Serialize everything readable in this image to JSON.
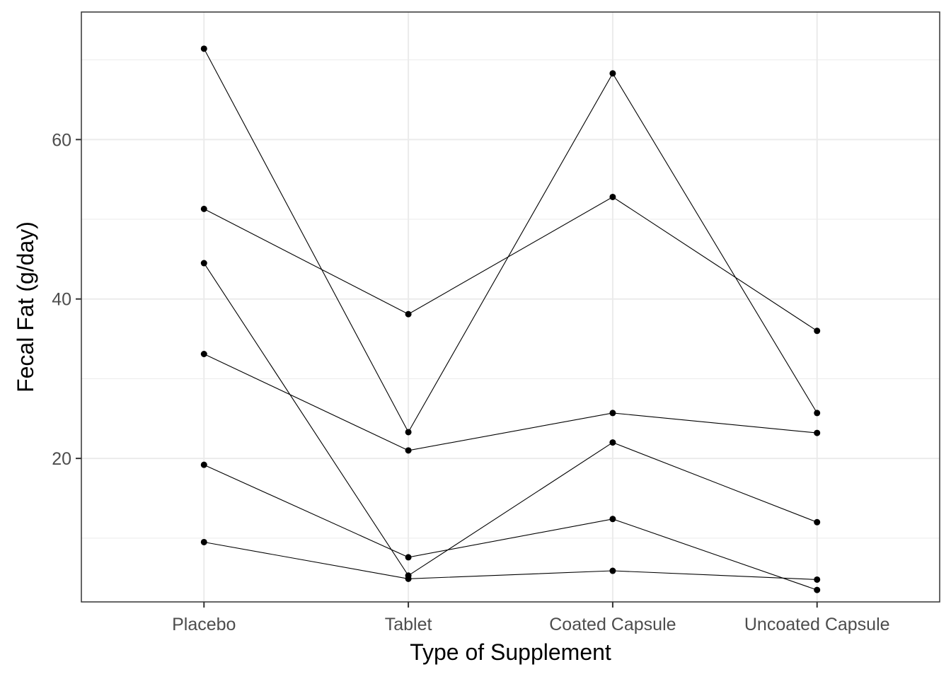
{
  "chart_data": {
    "type": "line",
    "title": "",
    "xlabel": "Type of Supplement",
    "ylabel": "Fecal Fat (g/day)",
    "categories": [
      "Placebo",
      "Tablet",
      "Coated Capsule",
      "Uncoated Capsule"
    ],
    "ylim": [
      2,
      76
    ],
    "yticks": [
      20,
      40,
      60
    ],
    "y_minor": [
      10,
      30,
      50,
      70
    ],
    "grid": true,
    "legend": "none",
    "series": [
      {
        "values": [
          71.4,
          23.3,
          68.3,
          25.7
        ]
      },
      {
        "values": [
          51.3,
          38.1,
          52.8,
          36.0
        ]
      },
      {
        "values": [
          44.5,
          5.3,
          22.0,
          12.0
        ]
      },
      {
        "values": [
          33.1,
          21.0,
          25.7,
          23.2
        ]
      },
      {
        "values": [
          19.2,
          7.6,
          12.4,
          3.5
        ]
      },
      {
        "values": [
          9.5,
          4.9,
          5.9,
          4.8
        ]
      }
    ],
    "colors": {
      "line": "#000000",
      "point": "#000000",
      "grid": "#ebebeb",
      "panel_border": "#333333"
    }
  }
}
